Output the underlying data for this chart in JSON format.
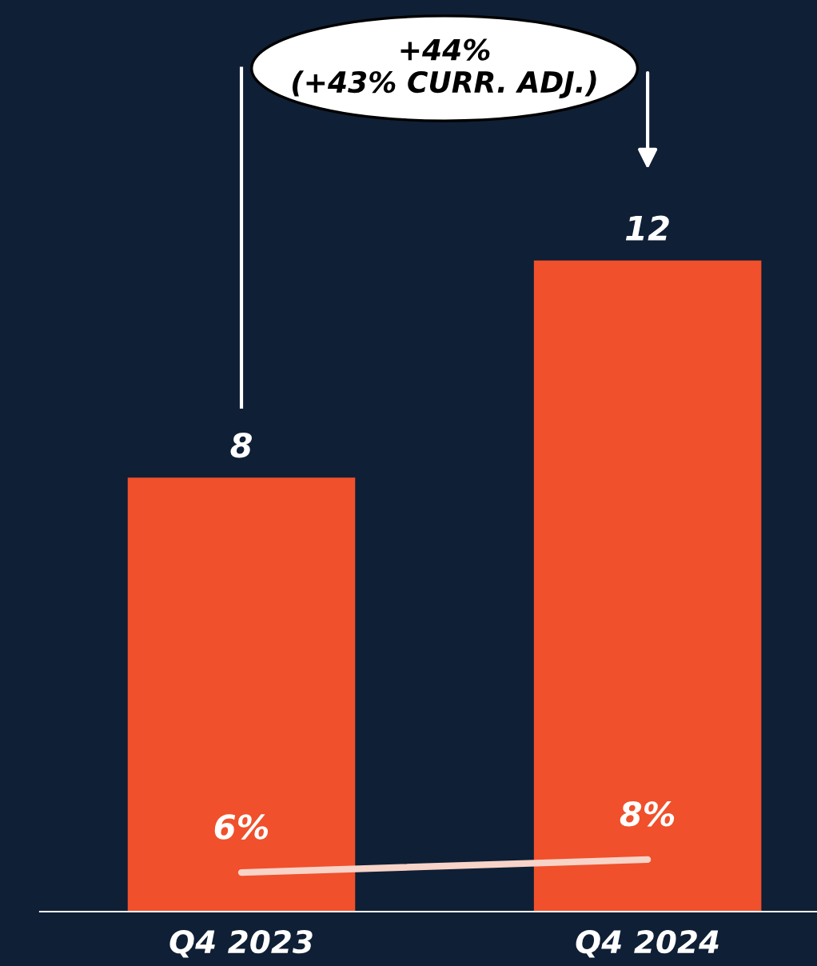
{
  "chart_data": {
    "type": "bar",
    "categories": [
      "Q4 2023",
      "Q4 2024"
    ],
    "series": [
      {
        "color": "#f0502b",
        "values": [
          8,
          12
        ],
        "value_labels": [
          "8",
          "12"
        ]
      },
      {
        "type": "line",
        "axis": "y2",
        "color": "#f8d3c8",
        "values": [
          6,
          8
        ],
        "value_labels": [
          "6%",
          "8%"
        ]
      }
    ],
    "ylim": [
      0,
      16.8
    ],
    "y2lim": [
      0,
      140
    ],
    "tick_labels": "x",
    "grid": false,
    "legend": false,
    "annotations": [
      "+44%\n(+43% CURR. ADJ.)"
    ]
  }
}
